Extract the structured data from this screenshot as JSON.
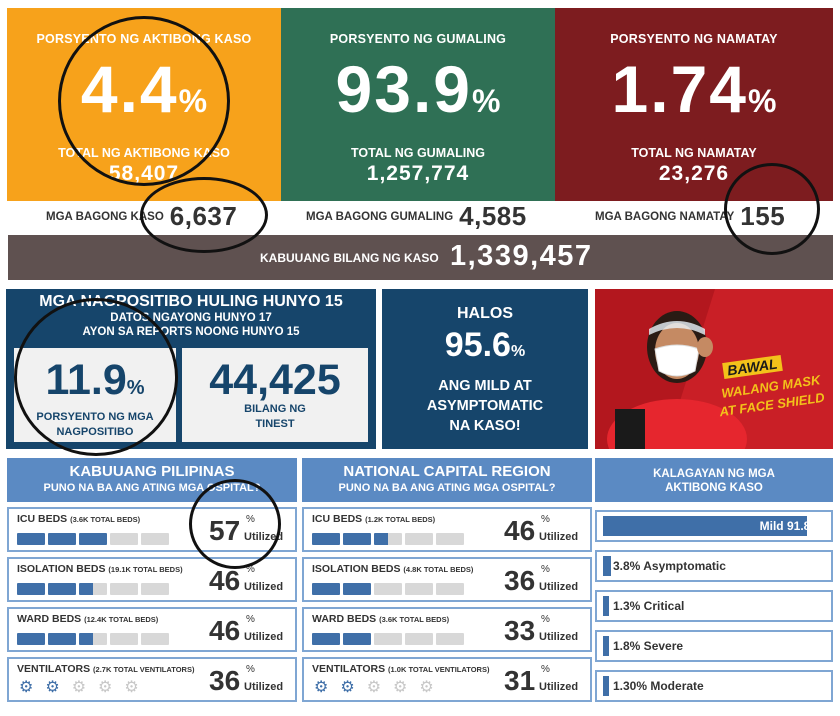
{
  "stats": {
    "active": {
      "label": "PORSYENTO NG AKTIBONG KASO",
      "value": "4.4",
      "pct": "%",
      "total_label": "TOTAL NG AKTIBONG KASO",
      "total": "58,407",
      "color": "#f7a21b"
    },
    "recovered": {
      "label": "PORSYENTO NG GUMALING",
      "value": "93.9",
      "pct": "%",
      "total_label": "TOTAL NG GUMALING",
      "total": "1,257,774",
      "color": "#2f7055"
    },
    "deaths": {
      "label": "PORSYENTO NG NAMATAY",
      "value": "1.74",
      "pct": "%",
      "total_label": "TOTAL NG NAMATAY",
      "total": "23,276",
      "color": "#7d1c1f"
    }
  },
  "new": {
    "cases_label": "MGA BAGONG KASO",
    "cases": "6,637",
    "recovered_label": "MGA BAGONG GUMALING",
    "recovered": "4,585",
    "deaths_label": "MGA BAGONG NAMATAY",
    "deaths": "155"
  },
  "total": {
    "label": "KABUUANG BILANG NG KASO",
    "value": "1,339,457"
  },
  "positivity": {
    "title": "MGA NAGPOSITIBO HULING HUNYO 15",
    "sub1": "DATOS NGAYONG HUNYO 17",
    "sub2": "AYON SA REPORTS NOONG HUNYO 15",
    "rate": "11.9",
    "pct": "%",
    "rate_label1": "PORSYENTO NG MGA",
    "rate_label2": "NAGPOSITIBO",
    "tested": "44,425",
    "tested_label1": "BILANG NG",
    "tested_label2": "TINEST"
  },
  "mild": {
    "head": "HALOS",
    "value": "95.6",
    "pct": "%",
    "line1": "ANG MILD AT",
    "line2": "ASYMPTOMATIC",
    "line3": "NA KASO!"
  },
  "poster": {
    "line1": "BAWAL",
    "line2": "WALANG MASK",
    "line3": "AT FACE SHIELD"
  },
  "panels": [
    {
      "title": "KABUUANG PILIPINAS",
      "sub": "PUNO NA BA ANG ATING MGA OSPITAL?",
      "rows": [
        {
          "name": "ICU BEDS",
          "cap": "(3.6K TOTAL BEDS)",
          "value": "57",
          "filled": 3,
          "type": "bed"
        },
        {
          "name": "ISOLATION BEDS",
          "cap": "(19.1K TOTAL BEDS)",
          "value": "46",
          "filled": 2.5,
          "type": "bed"
        },
        {
          "name": "WARD BEDS",
          "cap": "(12.4K TOTAL BEDS)",
          "value": "46",
          "filled": 2.5,
          "type": "bed"
        },
        {
          "name": "VENTILATORS",
          "cap": "(2.7K TOTAL VENTILATORS)",
          "value": "36",
          "filled": 2,
          "type": "vent"
        }
      ]
    },
    {
      "title": "NATIONAL CAPITAL REGION",
      "sub": "PUNO NA BA ANG ATING MGA OSPITAL?",
      "rows": [
        {
          "name": "ICU BEDS",
          "cap": "(1.2K TOTAL BEDS)",
          "value": "46",
          "filled": 2.5,
          "type": "bed"
        },
        {
          "name": "ISOLATION BEDS",
          "cap": "(4.8K TOTAL BEDS)",
          "value": "36",
          "filled": 2,
          "type": "bed"
        },
        {
          "name": "WARD BEDS",
          "cap": "(3.6K TOTAL BEDS)",
          "value": "33",
          "filled": 2,
          "type": "bed"
        },
        {
          "name": "VENTILATORS",
          "cap": "(1.0K TOTAL VENTILATORS)",
          "value": "31",
          "filled": 2,
          "type": "vent"
        }
      ]
    }
  ],
  "utilized_label": "Utilized",
  "pct": "%",
  "status": {
    "title1": "KALAGAYAN NG MGA",
    "title2": "AKTIBONG KASO",
    "rows": [
      {
        "label": "Mild 91.8%",
        "share": 0.918
      },
      {
        "label": "3.8% Asymptomatic",
        "share": 0.038
      },
      {
        "label": "1.3% Critical",
        "share": 0.013
      },
      {
        "label": "1.8% Severe",
        "share": 0.018
      },
      {
        "label": "1.30% Moderate",
        "share": 0.013
      }
    ]
  }
}
